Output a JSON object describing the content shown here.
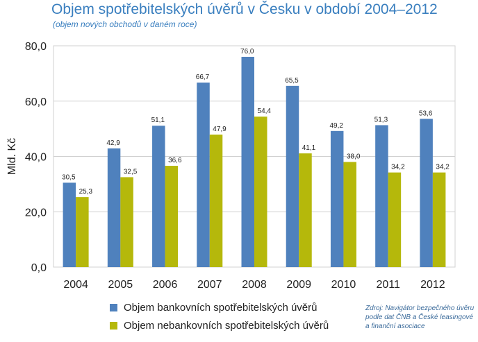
{
  "chart_data": {
    "type": "bar",
    "title": "Objem spotřebitelských úvěrů v Česku v období 2004–2012",
    "subtitle": "(objem nových obchodů v daném roce)",
    "ylabel": "Mld. Kč",
    "xlabel": "",
    "ylim": [
      0,
      80
    ],
    "yticks": [
      "0,0",
      "20,0",
      "40,0",
      "60,0",
      "80,0"
    ],
    "categories": [
      "2004",
      "2005",
      "2006",
      "2007",
      "2008",
      "2009",
      "2010",
      "2011",
      "2012"
    ],
    "series": [
      {
        "name": "Objem bankovních spotřebitelských úvěrů",
        "color": "#4f81bd",
        "values": [
          30.5,
          42.9,
          51.1,
          66.7,
          76.0,
          65.5,
          49.2,
          51.3,
          53.6
        ],
        "labels": [
          "30,5",
          "42,9",
          "51,1",
          "66,7",
          "76,0",
          "65,5",
          "49,2",
          "51,3",
          "53,6"
        ]
      },
      {
        "name": "Objem nebankovních spotřebitelských úvěrů",
        "color": "#b5b80b",
        "values": [
          25.3,
          32.5,
          36.6,
          47.9,
          54.4,
          41.1,
          38.0,
          34.2,
          34.2
        ],
        "labels": [
          "25,3",
          "32,5",
          "36,6",
          "47,9",
          "54,4",
          "41,1",
          "38,0",
          "34,2",
          "34,2"
        ]
      }
    ],
    "grid": true,
    "legend_position": "bottom"
  },
  "source_text": "Zdroj: Navigátor bezpečného úvěru podle dat ČNB a České leasingové a finanční asociace"
}
